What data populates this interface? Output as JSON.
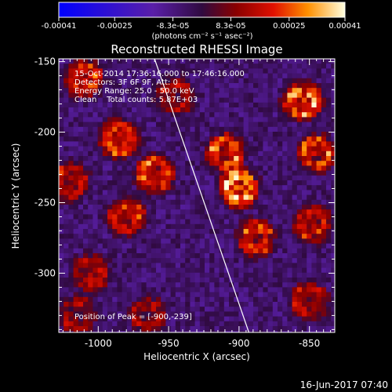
{
  "chart_data": {
    "type": "heatmap",
    "title": "Reconstructed RHESSI Image",
    "xlabel": "Heliocentric X (arcsec)",
    "ylabel": "Heliocentric Y (arcsec)",
    "xlim": [
      -1028,
      -832
    ],
    "ylim": [
      -342,
      -148
    ],
    "x_ticks": [
      "-1000",
      "-950",
      "-900",
      "-850"
    ],
    "x_tick_values": [
      -1000,
      -950,
      -900,
      -850
    ],
    "y_ticks": [
      "-150",
      "-200",
      "-250",
      "-300"
    ],
    "y_tick_values": [
      -150,
      -200,
      -250,
      -300
    ],
    "colorbar": {
      "ticks": [
        "-0.00041",
        "-0.00025",
        "-8.3e-05",
        "8.3e-05",
        "0.00025",
        "0.00041"
      ],
      "tick_values": [
        -0.00041,
        -0.00025,
        -8.3e-05,
        8.3e-05,
        0.00025,
        0.00041
      ],
      "range": [
        -0.00041,
        0.00041
      ],
      "unit_label": "(photons cm⁻² s⁻¹ asec⁻²)"
    },
    "annotations": [
      "15-Oct-2014 17:36:16.000 to 17:46:16.000",
      "Detectors: 3F 6F 9F, Att: 0",
      "Energy Range: 25.0 - 50.0 keV",
      "Clean    Total counts: 5.87E+03"
    ],
    "peak_label": "Position of Peak = [-900,-239]",
    "peak": [
      -900,
      -239
    ],
    "limb_line": [
      [
        -960,
        -148
      ],
      [
        -893,
        -342
      ]
    ],
    "blobs": [
      {
        "x": -1010,
        "y": -162,
        "v": 0.0003
      },
      {
        "x": -985,
        "y": -205,
        "v": 0.00032
      },
      {
        "x": -1020,
        "y": -235,
        "v": 0.00026
      },
      {
        "x": -980,
        "y": -260,
        "v": 0.00028
      },
      {
        "x": -1005,
        "y": -300,
        "v": 0.00022
      },
      {
        "x": -960,
        "y": -230,
        "v": 0.0003
      },
      {
        "x": -945,
        "y": -175,
        "v": 0.0002
      },
      {
        "x": -910,
        "y": -215,
        "v": 0.00034
      },
      {
        "x": -900,
        "y": -240,
        "v": 0.00041
      },
      {
        "x": -888,
        "y": -275,
        "v": 0.00028
      },
      {
        "x": -855,
        "y": -178,
        "v": 0.00036
      },
      {
        "x": -845,
        "y": -215,
        "v": 0.0003
      },
      {
        "x": -848,
        "y": -265,
        "v": 0.00026
      },
      {
        "x": -850,
        "y": -320,
        "v": 0.00022
      },
      {
        "x": -965,
        "y": -330,
        "v": 0.00018
      },
      {
        "x": -1015,
        "y": -330,
        "v": 0.0002
      }
    ]
  },
  "timestamp": "16-Jun-2017 07:40"
}
